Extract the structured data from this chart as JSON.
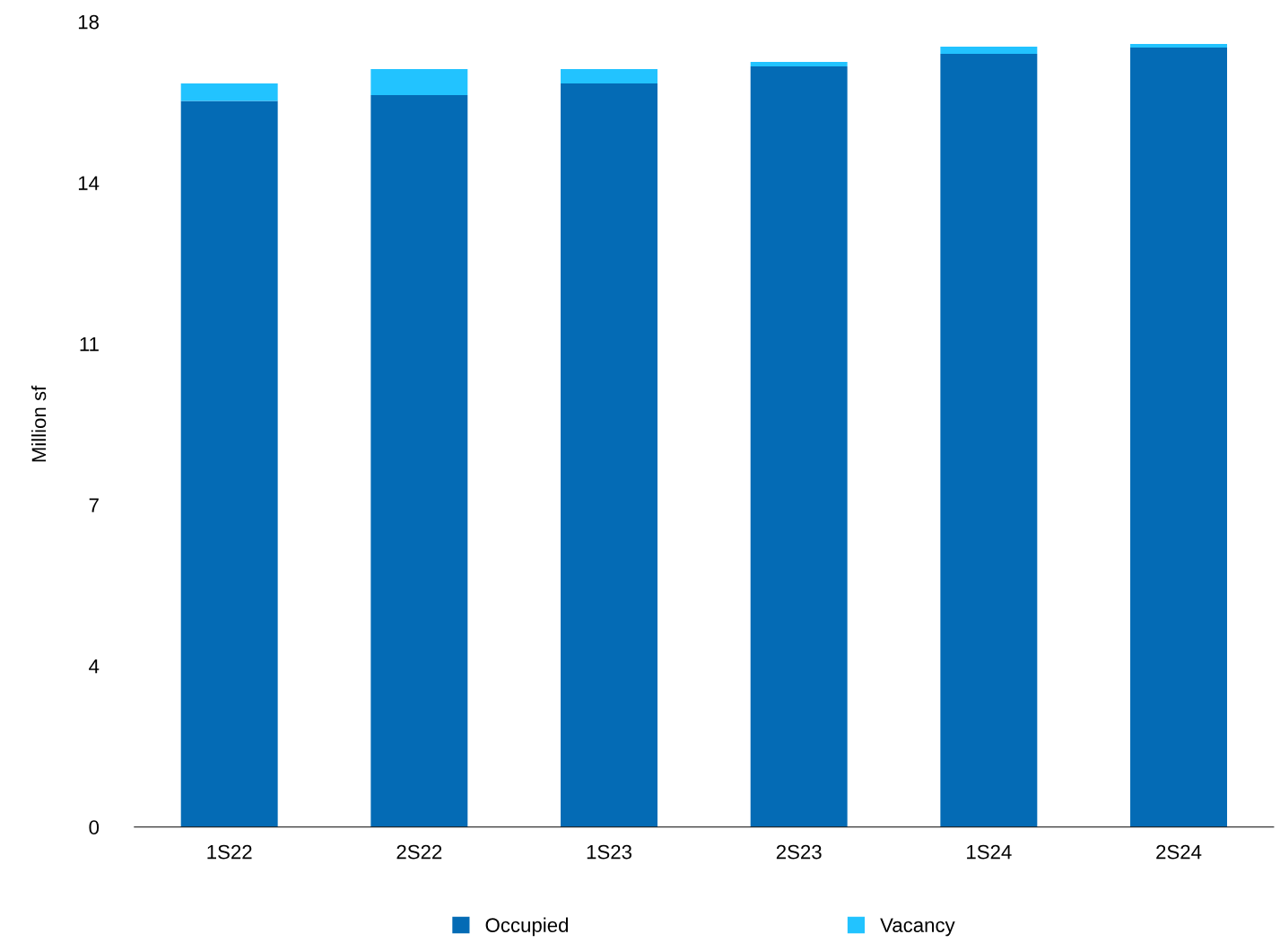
{
  "chart_data": {
    "type": "bar",
    "stacked": true,
    "ylabel": "Million sf",
    "categories": [
      "1S22",
      "2S22",
      "1S23",
      "2S23",
      "1S24",
      "2S24"
    ],
    "series": [
      {
        "name": "Occupied",
        "color": "#046bb5",
        "values": [
          16.23,
          16.36,
          16.62,
          17.0,
          17.28,
          17.42
        ]
      },
      {
        "name": "Vacancy",
        "color": "#22c3ff",
        "values": [
          0.39,
          0.58,
          0.32,
          0.1,
          0.16,
          0.08
        ]
      }
    ],
    "ylim": [
      0,
      18
    ],
    "yticks": [
      0,
      {
        "value": 3.6,
        "label": "4"
      },
      {
        "value": 7.2,
        "label": "7"
      },
      {
        "value": 10.8,
        "label": "11"
      },
      {
        "value": 14.4,
        "label": "14"
      },
      18
    ],
    "grid": false,
    "legend": "bottom"
  }
}
